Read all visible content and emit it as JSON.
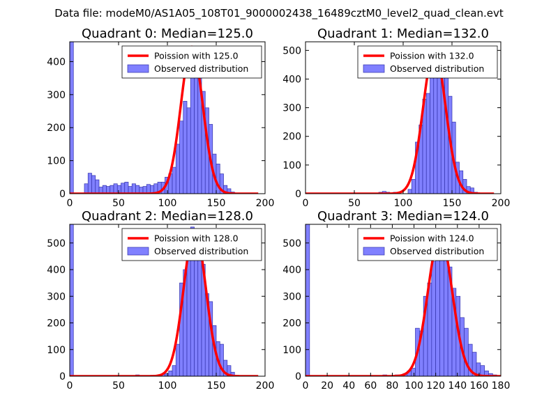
{
  "suptitle": "Data file: modeM0/AS1A05_108T01_9000002438_16489cztM0_level2_quad_clean.evt",
  "colors": {
    "bar_fill": "#8080ff",
    "bar_edge": "#3333aa",
    "fit_line": "#ff0000",
    "axes": "#000000",
    "background": "#ffffff"
  },
  "chart_data": [
    {
      "type": "bar",
      "title": "Quadrant 0: Median=125.0",
      "xlim": [
        0,
        200
      ],
      "ylim": [
        0,
        460
      ],
      "xticks": [
        0,
        50,
        100,
        150,
        200
      ],
      "xtick_labels": [
        "0",
        "50",
        "100",
        "150",
        "200"
      ],
      "yticks": [
        0,
        100,
        200,
        300,
        400
      ],
      "ytick_labels": [
        "0",
        "100",
        "200",
        "300",
        "400"
      ],
      "legend": [
        "Poission with 125.0",
        "Observed distribution"
      ],
      "legend_position": "top-right",
      "bin_width": 3.75,
      "bars": [
        [
          0,
          460
        ],
        [
          15,
          30
        ],
        [
          18.75,
          62
        ],
        [
          22.5,
          55
        ],
        [
          26.25,
          42
        ],
        [
          30,
          20
        ],
        [
          33.75,
          25
        ],
        [
          37.5,
          22
        ],
        [
          41.25,
          25
        ],
        [
          45,
          30
        ],
        [
          48.75,
          25
        ],
        [
          52.5,
          32
        ],
        [
          56.25,
          35
        ],
        [
          60,
          22
        ],
        [
          63.75,
          30
        ],
        [
          67.5,
          25
        ],
        [
          71.25,
          20
        ],
        [
          75,
          22
        ],
        [
          78.75,
          28
        ],
        [
          82.5,
          25
        ],
        [
          86.25,
          30
        ],
        [
          90,
          35
        ],
        [
          93.75,
          35
        ],
        [
          97.5,
          50
        ],
        [
          101.25,
          60
        ],
        [
          105,
          80
        ],
        [
          108.75,
          150
        ],
        [
          112.5,
          220
        ],
        [
          116.25,
          280
        ],
        [
          120,
          260
        ],
        [
          123.75,
          440
        ],
        [
          127.5,
          400
        ],
        [
          131.25,
          370
        ],
        [
          135,
          310
        ],
        [
          138.75,
          260
        ],
        [
          142.5,
          210
        ],
        [
          146.25,
          120
        ],
        [
          150,
          90
        ],
        [
          153.75,
          60
        ],
        [
          157.5,
          25
        ],
        [
          161.25,
          15
        ],
        [
          165,
          5
        ]
      ],
      "fit_mean": 125.0,
      "fit_peak": 445
    },
    {
      "type": "bar",
      "title": "Quadrant 1: Median=132.0",
      "xlim": [
        0,
        200
      ],
      "ylim": [
        0,
        530
      ],
      "xticks": [
        0,
        50,
        100,
        150,
        200
      ],
      "xtick_labels": [
        "0",
        "50",
        "100",
        "150",
        "200"
      ],
      "yticks": [
        0,
        100,
        200,
        300,
        400,
        500
      ],
      "ytick_labels": [
        "0",
        "100",
        "200",
        "300",
        "400",
        "500"
      ],
      "legend": [
        "Poission with 132.0",
        "Observed distribution"
      ],
      "legend_position": "top-right",
      "bin_width": 3.75,
      "bars": [
        [
          75,
          5
        ],
        [
          78.75,
          8
        ],
        [
          82.5,
          5
        ],
        [
          90,
          5
        ],
        [
          105,
          15
        ],
        [
          108.75,
          50
        ],
        [
          112.5,
          180
        ],
        [
          116.25,
          240
        ],
        [
          120,
          330
        ],
        [
          123.75,
          350
        ],
        [
          127.5,
          450
        ],
        [
          131.25,
          480
        ],
        [
          135,
          510
        ],
        [
          138.75,
          450
        ],
        [
          142.5,
          410
        ],
        [
          146.25,
          340
        ],
        [
          150,
          250
        ],
        [
          153.75,
          110
        ],
        [
          157.5,
          80
        ],
        [
          161.25,
          50
        ],
        [
          165,
          25
        ],
        [
          168.75,
          20
        ],
        [
          172.5,
          5
        ]
      ],
      "fit_mean": 132.0,
      "fit_peak": 500
    },
    {
      "type": "bar",
      "title": "Quadrant 2: Median=128.0",
      "xlim": [
        0,
        200
      ],
      "ylim": [
        0,
        570
      ],
      "xticks": [
        0,
        50,
        100,
        150,
        200
      ],
      "xtick_labels": [
        "0",
        "50",
        "100",
        "150",
        "200"
      ],
      "yticks": [
        0,
        100,
        200,
        300,
        400,
        500
      ],
      "ytick_labels": [
        "0",
        "100",
        "200",
        "300",
        "400",
        "500"
      ],
      "legend": [
        "Poission with 128.0",
        "Observed distribution"
      ],
      "legend_position": "top-right",
      "bin_width": 3.75,
      "bars": [
        [
          0,
          570
        ],
        [
          67.5,
          5
        ],
        [
          90,
          5
        ],
        [
          93.75,
          8
        ],
        [
          97.5,
          10
        ],
        [
          101.25,
          20
        ],
        [
          105,
          40
        ],
        [
          108.75,
          120
        ],
        [
          112.5,
          350
        ],
        [
          116.25,
          400
        ],
        [
          120,
          470
        ],
        [
          123.75,
          560
        ],
        [
          127.5,
          490
        ],
        [
          131.25,
          500
        ],
        [
          135,
          420
        ],
        [
          138.75,
          310
        ],
        [
          142.5,
          280
        ],
        [
          146.25,
          190
        ],
        [
          150,
          130
        ],
        [
          153.75,
          120
        ],
        [
          157.5,
          60
        ],
        [
          161.25,
          40
        ],
        [
          165,
          15
        ]
      ],
      "fit_mean": 128.0,
      "fit_peak": 548
    },
    {
      "type": "bar",
      "title": "Quadrant 3: Median=124.0",
      "xlim": [
        0,
        180
      ],
      "ylim": [
        0,
        570
      ],
      "xticks": [
        0,
        20,
        40,
        60,
        80,
        100,
        120,
        140,
        160,
        180
      ],
      "xtick_labels": [
        "0",
        "20",
        "40",
        "60",
        "80",
        "100",
        "120",
        "140",
        "160",
        "180"
      ],
      "yticks": [
        0,
        100,
        200,
        300,
        400,
        500
      ],
      "ytick_labels": [
        "0",
        "100",
        "200",
        "300",
        "400",
        "500"
      ],
      "legend": [
        "Poission with 124.0",
        "Observed distribution"
      ],
      "legend_position": "top-right",
      "bin_width": 3.75,
      "bars": [
        [
          0,
          570
        ],
        [
          71.25,
          5
        ],
        [
          82.5,
          5
        ],
        [
          90,
          10
        ],
        [
          93.75,
          20
        ],
        [
          97.5,
          30
        ],
        [
          101.25,
          180
        ],
        [
          105,
          170
        ],
        [
          108.75,
          300
        ],
        [
          112.5,
          350
        ],
        [
          116.25,
          430
        ],
        [
          120,
          520
        ],
        [
          123.75,
          510
        ],
        [
          127.5,
          510
        ],
        [
          131.25,
          410
        ],
        [
          135,
          330
        ],
        [
          138.75,
          300
        ],
        [
          142.5,
          220
        ],
        [
          146.25,
          180
        ],
        [
          150,
          120
        ],
        [
          153.75,
          90
        ],
        [
          157.5,
          50
        ],
        [
          161.25,
          40
        ],
        [
          165,
          20
        ],
        [
          168.75,
          10
        ],
        [
          172.5,
          5
        ]
      ],
      "fit_mean": 124.0,
      "fit_peak": 528
    }
  ]
}
